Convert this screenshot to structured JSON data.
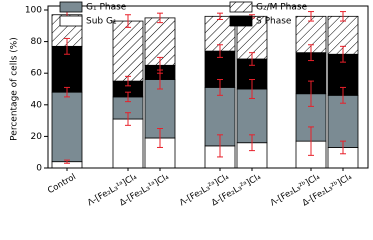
{
  "chart_data": {
    "type": "stacked-bar",
    "y_label": "Percentage of cells (%)",
    "categories": [
      "Control",
      "Λ-[Fe₂L₃¹ᵃ]Cl₄",
      "Δ-[Fe₂L₃¹ᵃ]Cl₄",
      "Λ-[Fe₂L₃²ᵃ]Cl₄",
      "Δ-[Fe₂L₃²ᵃ]Cl₄",
      "Λ-[Fe₂L₃²ᵇ]Cl₄",
      "Δ-[Fe₂L₃²ᵇ]Cl₄"
    ],
    "series": [
      {
        "name": "Sub G₁",
        "color": "#ffffff",
        "values": [
          4,
          31,
          19,
          14,
          16,
          17,
          13
        ],
        "errors": [
          1,
          4,
          6,
          7,
          5,
          9,
          4
        ]
      },
      {
        "name": "G₁ Phase",
        "color": "#7b8b93",
        "values": [
          44,
          14,
          37,
          37,
          34,
          30,
          33
        ],
        "errors": [
          3,
          3,
          6,
          5,
          6,
          8,
          5
        ]
      },
      {
        "name": "S Phase",
        "color": "#000000",
        "values": [
          29,
          10,
          9,
          23,
          19,
          26,
          26
        ],
        "errors": [
          5,
          3,
          5,
          4,
          4,
          5,
          5
        ]
      },
      {
        "name": "G₂/M Phase",
        "color": "#ffffff",
        "hatch": true,
        "values": [
          20,
          38,
          30,
          22,
          27,
          23,
          24
        ],
        "errors": [
          2,
          4,
          3,
          2,
          1,
          3,
          3
        ]
      }
    ],
    "error_color": "#e8202a",
    "ylim": [
      0,
      100
    ],
    "yticks": [
      0,
      20,
      40,
      60,
      80,
      100
    ]
  }
}
